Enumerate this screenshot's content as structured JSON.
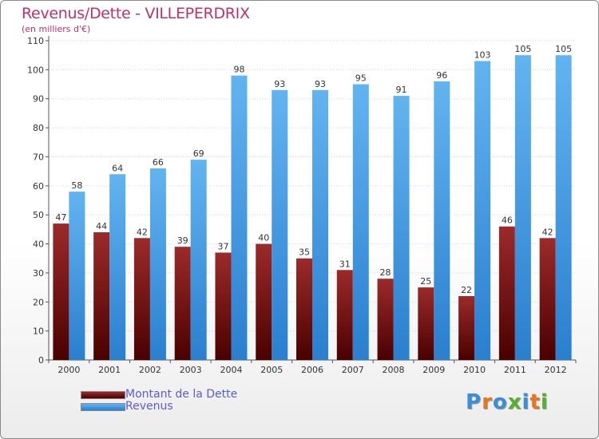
{
  "header": {
    "title": "Revenus/Dette - VILLEPERDRIX",
    "subtitle": "(en milliers d'€)"
  },
  "colors": {
    "debt": "#6b0a0a",
    "revenue": "#4aa3e8",
    "title": "#c0316a",
    "legend_text": "#5b5bd6"
  },
  "legend": {
    "items": [
      {
        "label": "Montant de la Dette",
        "color": "#6b0a0a"
      },
      {
        "label": "Revenus",
        "color": "#4aa3e8"
      }
    ]
  },
  "logo": {
    "text": "Proxiti"
  },
  "chart_data": {
    "type": "bar",
    "title": "Revenus/Dette - VILLEPERDRIX",
    "subtitle": "(en milliers d'€)",
    "categories": [
      "2000",
      "2001",
      "2002",
      "2003",
      "2004",
      "2005",
      "2006",
      "2007",
      "2008",
      "2009",
      "2010",
      "2011",
      "2012"
    ],
    "series": [
      {
        "name": "Montant de la Dette",
        "values": [
          47,
          44,
          42,
          39,
          37,
          40,
          35,
          31,
          28,
          25,
          22,
          46,
          42
        ]
      },
      {
        "name": "Revenus",
        "values": [
          58,
          64,
          66,
          69,
          98,
          93,
          93,
          95,
          91,
          96,
          103,
          105,
          105
        ]
      }
    ],
    "ylim": [
      0,
      110
    ],
    "yticks": [
      0,
      10,
      20,
      30,
      40,
      50,
      60,
      70,
      80,
      90,
      100,
      110
    ],
    "grid": true,
    "legend_position": "bottom-left"
  }
}
